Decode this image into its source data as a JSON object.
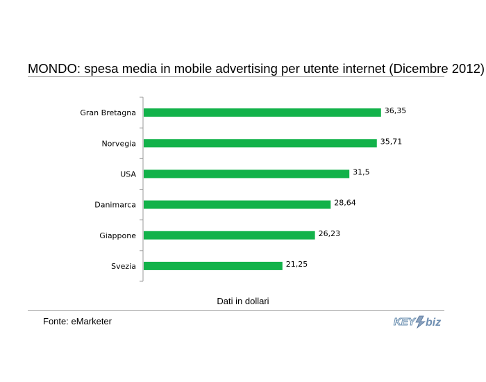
{
  "chart_data": {
    "type": "bar",
    "orientation": "horizontal",
    "title": "MONDO: spesa media in mobile advertising per utente internet (Dicembre 2012)",
    "xlabel": "Dati in dollari",
    "categories": [
      "Gran Bretagna",
      "Norvegia",
      "USA",
      "Danimarca",
      "Giappone",
      "Svezia"
    ],
    "values": [
      36.35,
      35.71,
      31.5,
      28.64,
      26.23,
      21.25
    ],
    "value_labels": [
      "36,35",
      "35,71",
      "31,5",
      "28,64",
      "26,23",
      "21,25"
    ],
    "xlim": [
      0,
      38.5
    ],
    "grid": false,
    "color": "#12b24a"
  },
  "footer": {
    "source": "Fonte: eMarketer"
  },
  "logo": {
    "text_left": "KEY",
    "text_right": "biz"
  }
}
